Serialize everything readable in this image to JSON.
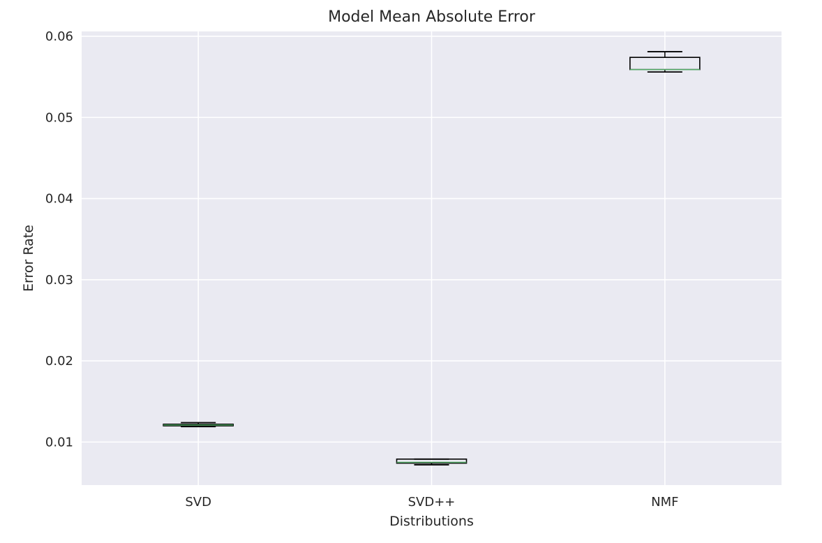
{
  "chart_data": {
    "type": "boxplot",
    "title": "Model Mean Absolute Error",
    "xlabel": "Distributions",
    "ylabel": "Error Rate",
    "categories": [
      "SVD",
      "SVD++",
      "NMF"
    ],
    "boxes": [
      {
        "category": "SVD",
        "whisker_low": 0.0119,
        "q1": 0.012,
        "median": 0.0121,
        "q3": 0.0122,
        "whisker_high": 0.0124
      },
      {
        "category": "SVD++",
        "whisker_low": 0.0072,
        "q1": 0.0074,
        "median": 0.0075,
        "q3": 0.0079,
        "whisker_high": 0.0079
      },
      {
        "category": "NMF",
        "whisker_low": 0.0556,
        "q1": 0.0559,
        "median": 0.0559,
        "q3": 0.0574,
        "whisker_high": 0.0581
      }
    ],
    "ylim": [
      0.0047,
      0.0606
    ],
    "yticks": [
      0.01,
      0.02,
      0.03,
      0.04,
      0.05,
      0.06
    ],
    "ytick_labels": [
      "0.01",
      "0.02",
      "0.03",
      "0.04",
      "0.05",
      "0.06"
    ],
    "grid": true,
    "colors": {
      "background": "#eaeaf2",
      "grid": "#ffffff",
      "box": "#000000",
      "median": "#55a868",
      "text": "#262626"
    }
  }
}
